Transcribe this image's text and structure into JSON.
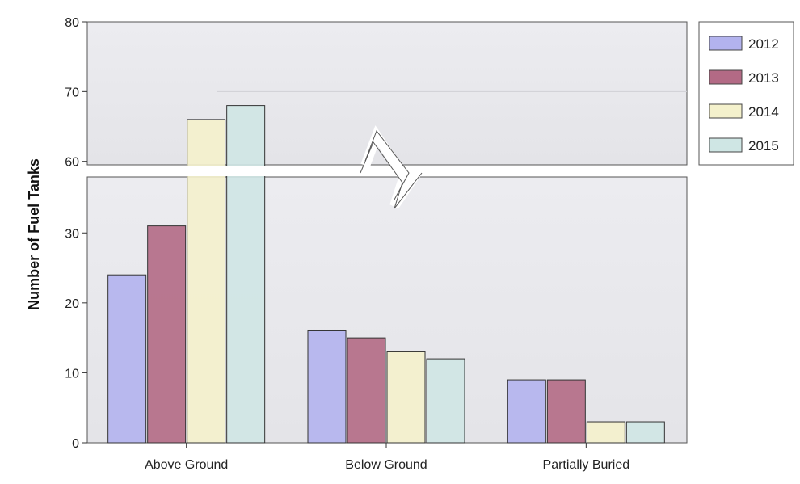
{
  "chart_data": {
    "type": "bar",
    "title": "",
    "xlabel": "",
    "ylabel": "Number of Fuel Tanks",
    "categories": [
      "Above Ground",
      "Below Ground",
      "Partially Buried"
    ],
    "series": [
      {
        "name": "2012",
        "color": "#b3b3ee",
        "values": [
          24,
          16,
          9
        ]
      },
      {
        "name": "2013",
        "color": "#b36a85",
        "values": [
          31,
          15,
          9
        ]
      },
      {
        "name": "2014",
        "color": "#f4f1cc",
        "values": [
          66,
          13,
          3
        ]
      },
      {
        "name": "2015",
        "color": "#cfe6e4",
        "values": [
          68,
          12,
          3
        ]
      }
    ],
    "axis_break": {
      "lower_range": [
        0,
        38
      ],
      "upper_range": [
        59.5,
        80
      ]
    },
    "y_ticks": [
      0,
      10,
      20,
      30,
      60,
      70,
      80
    ],
    "legend_position": "top-right",
    "grid": false
  }
}
